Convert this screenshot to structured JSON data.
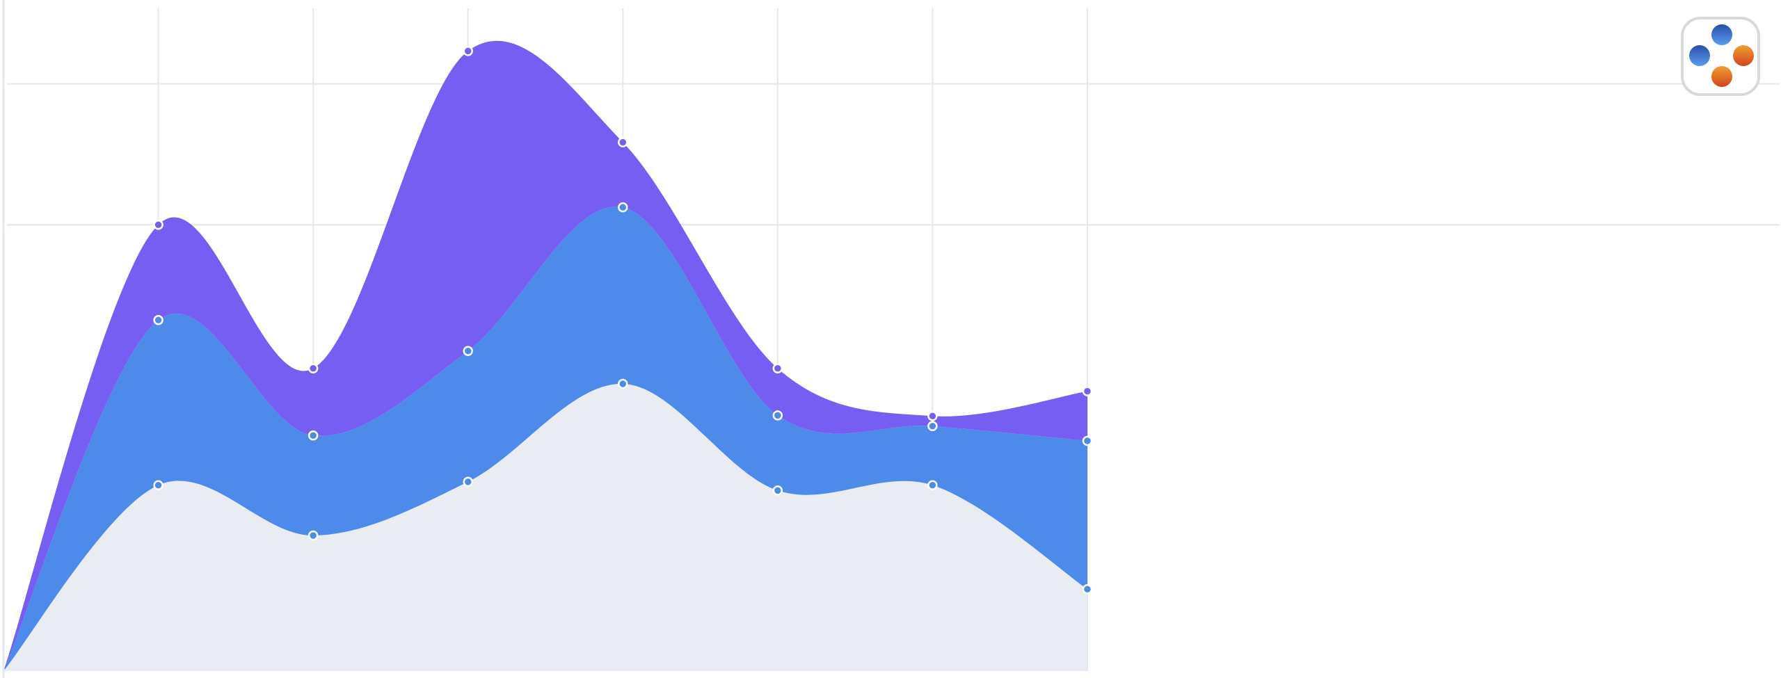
{
  "chart_data": {
    "type": "area",
    "stacked": true,
    "categories": [
      null,
      null,
      null,
      null,
      null,
      null,
      null,
      null
    ],
    "series": [
      {
        "color": "#e9ecf2",
        "values": [
          0,
          27.7,
          20.2,
          28.2,
          42.8,
          26.9,
          27.7,
          12.2
        ]
      },
      {
        "color": "#4e8aea",
        "values": [
          0,
          24.6,
          14.9,
          19.5,
          26.3,
          11.2,
          8.8,
          22.1
        ]
      },
      {
        "color": "#775ef2",
        "values": [
          0,
          14.2,
          10.0,
          44.7,
          9.7,
          7.0,
          1.5,
          7.4
        ]
      }
    ],
    "ylim": [
      0,
      100
    ],
    "yticks": [
      66.5,
      87.5
    ],
    "grid": true
  }
}
